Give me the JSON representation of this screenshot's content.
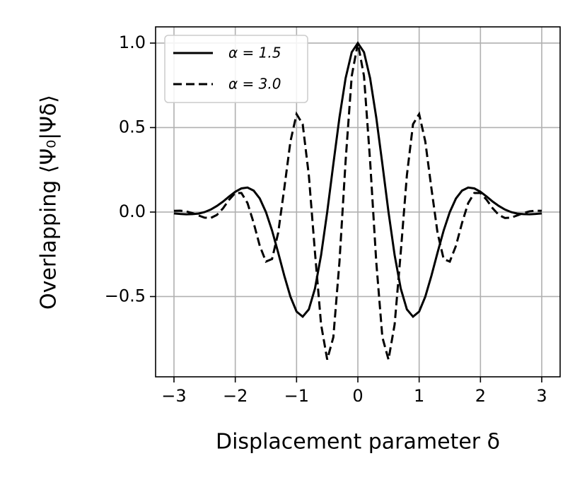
{
  "chart_data": {
    "type": "line",
    "xlabel": "Displacement parameter δ",
    "ylabel": "Overlapping ⟨Ψ₀|Ψδ⟩",
    "x": [
      -3,
      -2.9,
      -2.8,
      -2.7,
      -2.6,
      -2.5,
      -2.4,
      -2.3,
      -2.2,
      -2.1,
      -2,
      -1.9,
      -1.8,
      -1.7,
      -1.6,
      -1.5,
      -1.4,
      -1.3,
      -1.2,
      -1.1,
      -1,
      -0.9,
      -0.8,
      -0.7,
      -0.6,
      -0.5,
      -0.4,
      -0.3,
      -0.2,
      -0.1,
      0,
      0.1,
      0.2,
      0.3,
      0.4,
      0.5,
      0.6,
      0.7,
      0.8,
      0.9,
      1,
      1.1,
      1.2,
      1.3,
      1.4,
      1.5,
      1.6,
      1.7,
      1.8,
      1.9,
      2,
      2.1,
      2.2,
      2.3,
      2.4,
      2.5,
      2.6,
      2.7,
      2.8,
      2.9,
      3
    ],
    "series": [
      {
        "name": "α = 1.5",
        "color": "#000000",
        "linestyle": "solid",
        "values": [
          -0.008,
          -0.011,
          -0.013,
          -0.012,
          -0.009,
          0,
          0.015,
          0.036,
          0.062,
          0.092,
          0.12,
          0.14,
          0.145,
          0.127,
          0.08,
          0,
          -0.109,
          -0.24,
          -0.377,
          -0.501,
          -0.589,
          -0.619,
          -0.576,
          -0.453,
          -0.255,
          0,
          0.284,
          0.56,
          0.792,
          0.946,
          1,
          0.946,
          0.792,
          0.56,
          0.284,
          0,
          -0.255,
          -0.453,
          -0.576,
          -0.619,
          -0.589,
          -0.501,
          -0.377,
          -0.24,
          -0.109,
          0,
          0.08,
          0.127,
          0.145,
          0.14,
          0.12,
          0.092,
          0.062,
          0.036,
          0.015,
          0,
          -0.009,
          -0.012,
          -0.013,
          -0.011,
          -0.008
        ]
      },
      {
        "name": "α = 3.0",
        "color": "#000000",
        "linestyle": "dashed",
        "values": [
          0.007,
          0.008,
          0.004,
          -0.006,
          -0.02,
          -0.033,
          -0.035,
          -0.017,
          0.022,
          0.073,
          0.113,
          0.113,
          0.053,
          -0.064,
          -0.2,
          -0.293,
          -0.278,
          -0.123,
          0.141,
          0.418,
          0.58,
          0.52,
          0.218,
          -0.237,
          -0.665,
          -0.873,
          -0.741,
          -0.294,
          0.302,
          0.805,
          1,
          0.805,
          0.302,
          -0.294,
          -0.741,
          -0.873,
          -0.665,
          -0.237,
          0.218,
          0.52,
          0.58,
          0.418,
          0.141,
          -0.123,
          -0.278,
          -0.293,
          -0.2,
          -0.064,
          0.053,
          0.113,
          0.113,
          0.073,
          0.022,
          -0.017,
          -0.035,
          -0.033,
          -0.02,
          -0.006,
          0.004,
          0.008,
          0.007
        ]
      }
    ],
    "xlim": [
      -3.3,
      3.3
    ],
    "ylim": [
      -0.975,
      1.096
    ],
    "xticks": [
      {
        "value": -3,
        "label": "−3"
      },
      {
        "value": -2,
        "label": "−2"
      },
      {
        "value": -1,
        "label": "−1"
      },
      0,
      1,
      2,
      3
    ],
    "yticks": [
      {
        "value": -0.5,
        "label": "−0.5"
      },
      {
        "value": 0,
        "label": "0.0"
      },
      {
        "value": 0.5,
        "label": "0.5"
      },
      {
        "value": 1,
        "label": "1.0"
      }
    ],
    "grid": true,
    "legend": "upper left"
  }
}
